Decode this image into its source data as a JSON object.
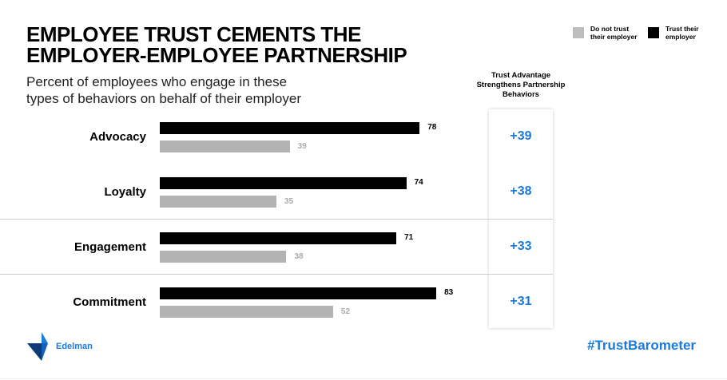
{
  "title": "EMPLOYEE TRUST CEMENTS THE EMPLOYER-EMPLOYEE PARTNERSHIP",
  "subtitle": "Percent of employees who engage in these types of behaviors on behalf of their employer",
  "advantage_header": "Trust Advantage Strengthens Partnership Behaviors",
  "brand": "Edelman",
  "hashtag": "#TrustBarometer",
  "colors": {
    "trust": "#000000",
    "distrust": "#b3b3b3",
    "accent": "#1b7ae0"
  },
  "chart_data": {
    "type": "bar",
    "orientation": "horizontal",
    "categories": [
      "Advocacy",
      "Loyalty",
      "Engagement",
      "Commitment"
    ],
    "series": [
      {
        "name": "Trust their employer",
        "values": [
          78,
          74,
          71,
          83
        ]
      },
      {
        "name": "Do not trust their employer",
        "values": [
          39,
          35,
          38,
          52
        ]
      }
    ],
    "advantage": [
      "+39",
      "+38",
      "+33",
      "+31"
    ],
    "legend_position": "top-right",
    "grid": false
  }
}
